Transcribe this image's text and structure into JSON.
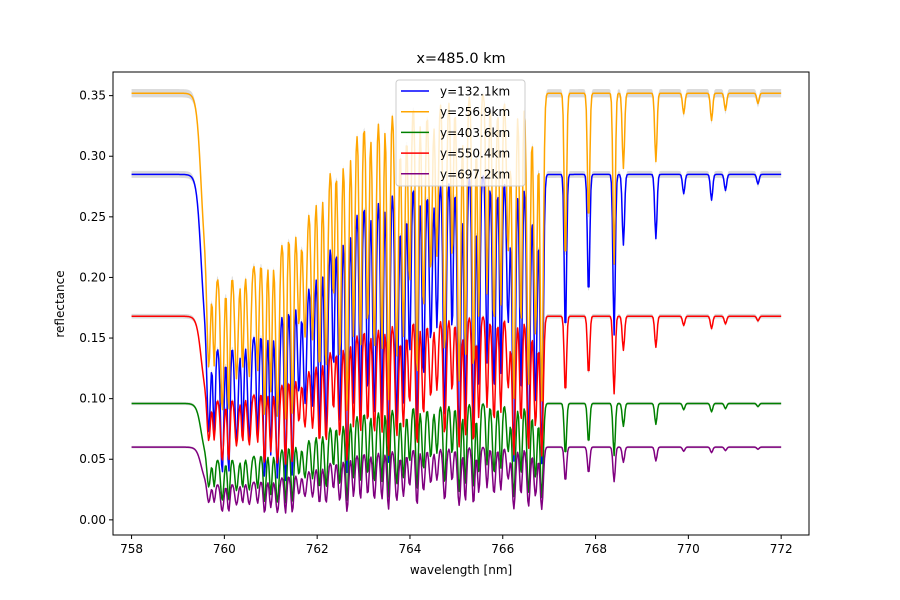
{
  "chart_data": {
    "type": "line",
    "title": "x=485.0 km",
    "xlabel": "wavelength [nm]",
    "ylabel": "reflectance",
    "xlim": [
      757.6,
      772.6
    ],
    "ylim": [
      -0.0125,
      0.3695
    ],
    "xticks": [
      758,
      760,
      762,
      764,
      766,
      768,
      770,
      772
    ],
    "xtick_labels": [
      "758",
      "760",
      "762",
      "764",
      "766",
      "768",
      "770",
      "772"
    ],
    "yticks": [
      0.0,
      0.05,
      0.1,
      0.15,
      0.2,
      0.25,
      0.3,
      0.35
    ],
    "ytick_labels": [
      "0.00",
      "0.05",
      "0.10",
      "0.15",
      "0.20",
      "0.25",
      "0.30",
      "0.35"
    ],
    "grid": false,
    "legend_position": "top-center",
    "x_range": [
      758,
      772
    ],
    "band": {
      "start": 759.5,
      "end": 766.9
    },
    "secondary_lines": [
      {
        "position": 767.35,
        "depth": 0.5
      },
      {
        "position": 767.85,
        "depth": 0.38
      },
      {
        "position": 768.4,
        "depth": 0.5
      },
      {
        "position": 768.6,
        "depth": 0.22
      },
      {
        "position": 769.3,
        "depth": 0.2
      },
      {
        "position": 769.9,
        "depth": 0.06
      },
      {
        "position": 770.5,
        "depth": 0.08
      },
      {
        "position": 770.8,
        "depth": 0.05
      },
      {
        "position": 771.5,
        "depth": 0.03
      }
    ],
    "series": [
      {
        "name": "y=132.1km",
        "color": "#0000ff",
        "continuum": 0.285,
        "floor": 0.02
      },
      {
        "name": "y=256.9km",
        "color": "#ffa500",
        "continuum": 0.352,
        "floor": 0.07
      },
      {
        "name": "y=403.6km",
        "color": "#008000",
        "continuum": 0.096,
        "floor": 0.01
      },
      {
        "name": "y=550.4km",
        "color": "#ff0000",
        "continuum": 0.168,
        "floor": 0.04
      },
      {
        "name": "y=697.2km",
        "color": "#800080",
        "continuum": 0.06,
        "floor": 0.003
      }
    ]
  }
}
